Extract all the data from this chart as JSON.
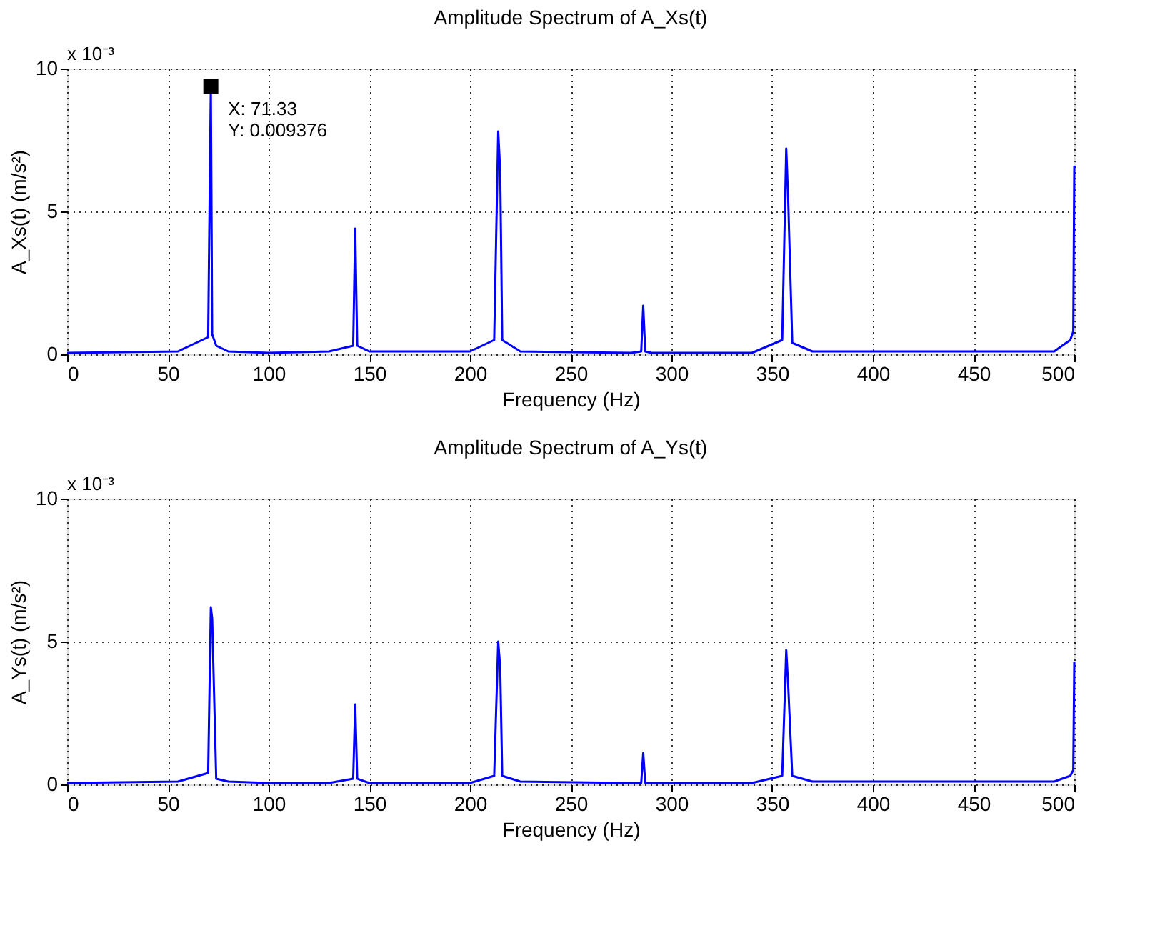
{
  "chart_data": [
    {
      "type": "line",
      "title": "Amplitude Spectrum of A_Xs(t)",
      "xlabel": "Frequency (Hz)",
      "ylabel": "A_Xs(t) (m/s²)",
      "x": [
        0,
        55,
        70,
        71.33,
        72,
        74,
        80,
        100,
        130,
        142,
        143,
        144,
        150,
        200,
        212,
        214,
        215,
        216,
        225,
        280,
        285,
        286,
        287,
        290,
        340,
        355,
        357,
        358,
        360,
        370,
        490,
        498,
        499.5,
        500
      ],
      "series": [
        {
          "color": "#0000ff",
          "values": [
            0.05,
            0.1,
            0.6,
            9.376,
            0.7,
            0.3,
            0.1,
            0.05,
            0.1,
            0.3,
            4.4,
            0.3,
            0.1,
            0.1,
            0.5,
            7.8,
            6.4,
            0.5,
            0.1,
            0.05,
            0.1,
            1.7,
            0.1,
            0.05,
            0.05,
            0.5,
            7.2,
            5.3,
            0.4,
            0.1,
            0.1,
            0.5,
            0.8,
            6.6
          ]
        }
      ],
      "xlim": [
        0,
        500
      ],
      "xticks": [
        0,
        50,
        100,
        150,
        200,
        250,
        300,
        350,
        400,
        450,
        500
      ],
      "ylim": [
        0,
        10
      ],
      "yticks": [
        0,
        5,
        10
      ],
      "grid": true,
      "line_style": "solid",
      "marker": "none",
      "annotations": [
        "x 10⁻³",
        {
          "text": "X: 71.33\nY: 0.009376",
          "x": 71.33,
          "y": 9.376
        }
      ]
    },
    {
      "type": "line",
      "title": "Amplitude Spectrum of A_Ys(t)",
      "xlabel": "Frequency (Hz)",
      "ylabel": "A_Ys(t) (m/s²)",
      "x": [
        0,
        55,
        70,
        71.33,
        72,
        74,
        80,
        100,
        130,
        142,
        143,
        144,
        150,
        200,
        212,
        214,
        215,
        216,
        225,
        280,
        285,
        286,
        287,
        290,
        340,
        355,
        357,
        358,
        360,
        370,
        490,
        498,
        499.5,
        500
      ],
      "series": [
        {
          "color": "#0000ff",
          "values": [
            0.05,
            0.1,
            0.4,
            6.2,
            5.8,
            0.2,
            0.1,
            0.05,
            0.05,
            0.2,
            2.8,
            0.2,
            0.05,
            0.05,
            0.3,
            5.0,
            4.1,
            0.3,
            0.1,
            0.05,
            0.05,
            1.1,
            0.05,
            0.05,
            0.05,
            0.3,
            4.7,
            3.4,
            0.3,
            0.1,
            0.1,
            0.3,
            0.5,
            4.3
          ]
        }
      ],
      "xlim": [
        0,
        500
      ],
      "xticks": [
        0,
        50,
        100,
        150,
        200,
        250,
        300,
        350,
        400,
        450,
        500
      ],
      "ylim": [
        0,
        10
      ],
      "yticks": [
        0,
        5,
        10
      ],
      "grid": true,
      "line_style": "solid",
      "marker": "none",
      "annotations": [
        "x 10⁻³"
      ]
    }
  ]
}
